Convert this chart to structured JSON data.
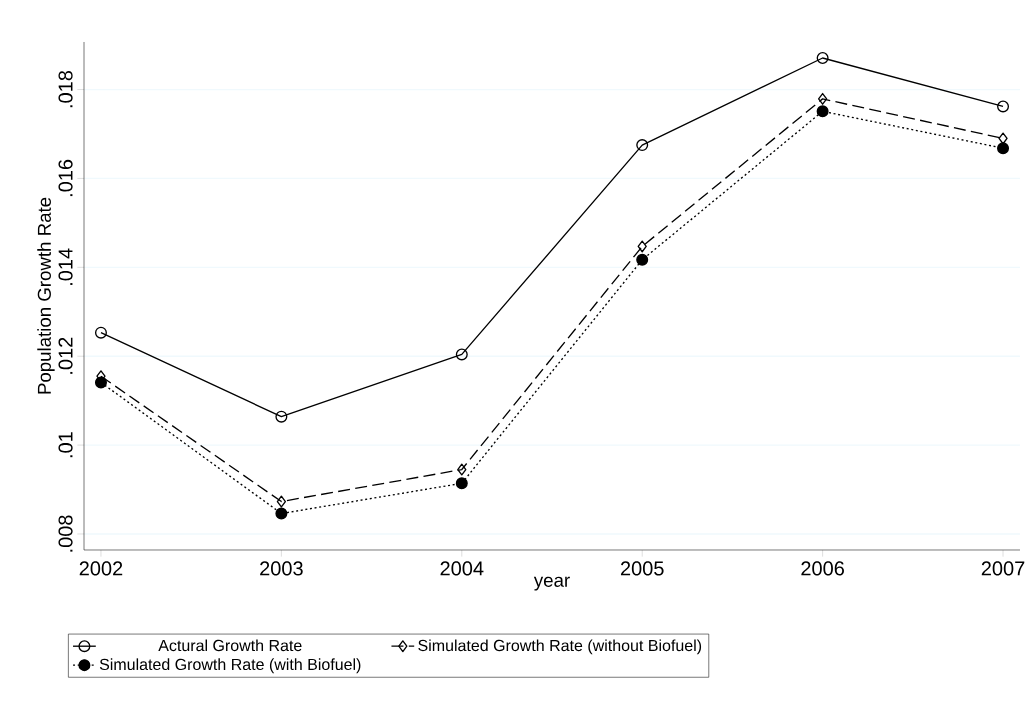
{
  "chart_data": {
    "type": "line",
    "xlabel": "year",
    "ylabel": "Population Growth Rate",
    "x": [
      2002,
      2003,
      2004,
      2005,
      2006,
      2007
    ],
    "series": [
      {
        "name": "Actural  Growth Rate",
        "color": "#000000",
        "marker": "circle",
        "line_style": "solid",
        "values": [
          0.01253,
          0.01064,
          0.01204,
          0.01675,
          0.01871,
          0.01762
        ]
      },
      {
        "name": "Simulated Growth Rate (without Biofuel)",
        "color": "#000000",
        "marker": "diamond",
        "line_style": "dashed",
        "values": [
          0.01155,
          0.00873,
          0.00945,
          0.01447,
          0.01779,
          0.0169
        ]
      },
      {
        "name": "Simulated Growth Rate (with Biofuel)",
        "color": "#000000",
        "marker": "filled circle",
        "line_style": "dotted",
        "values": [
          0.01141,
          0.00846,
          0.00914,
          0.01417,
          0.01751,
          0.01668
        ]
      }
    ],
    "xlim": [
      2001.906,
      2007.094
    ],
    "ylim": [
      0.00764,
      0.01907
    ],
    "xticks": [
      2002,
      2003,
      2004,
      2005,
      2006,
      2007
    ],
    "yticks": [
      {
        "value": 0.008,
        "label": ".008"
      },
      {
        "value": 0.01,
        "label": ".01"
      },
      {
        "value": 0.012,
        "label": ".012"
      },
      {
        "value": 0.014,
        "label": ".014"
      },
      {
        "value": 0.016,
        "label": ".016"
      },
      {
        "value": 0.018,
        "label": ".018"
      }
    ],
    "grid": "y",
    "legend": "bottom"
  }
}
